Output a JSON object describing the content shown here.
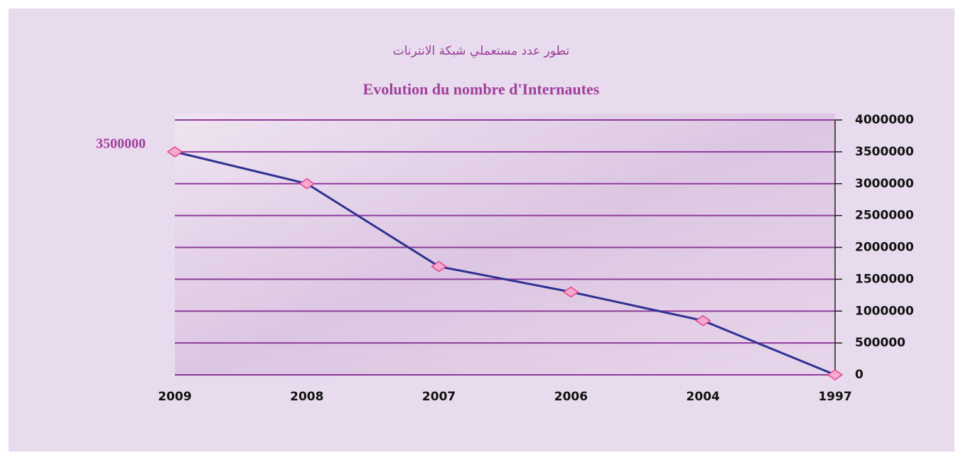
{
  "chart_data": {
    "type": "line",
    "title": "تطور عدد مستعملي شبكة الانترنات",
    "subtitle": "Evolution du nombre d'Internautes",
    "categories": [
      "2009",
      "2008",
      "2007",
      "2006",
      "2004",
      "1997"
    ],
    "series": [
      {
        "name": "Internautes",
        "color": "#2e3192",
        "values": [
          3500000,
          3000000,
          1700000,
          1300000,
          850000,
          0
        ]
      }
    ],
    "ylim": [
      0,
      4000000
    ],
    "yticks": [
      0,
      500000,
      1000000,
      1500000,
      2000000,
      2500000,
      3000000,
      3500000,
      4000000
    ],
    "grid": true,
    "grid_color": "#8e3a9c",
    "marker_color": "#f7a9cf",
    "marker_edge_color": "#e2478f"
  }
}
